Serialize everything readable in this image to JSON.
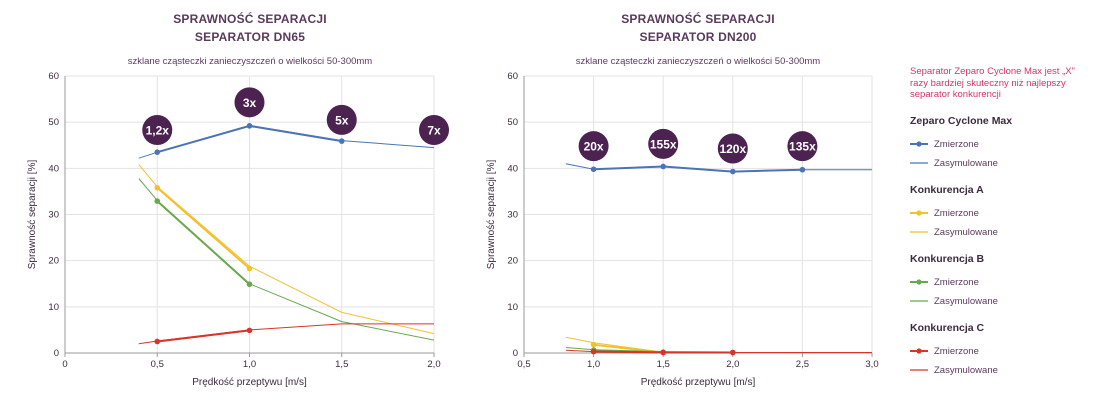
{
  "legend": {
    "note": "Separator Zeparo Cyclone Max jest „X” razy bardziej skuteczny niż najlepszy separator konkurencji",
    "groups": [
      {
        "name": "Zeparo Cyclone Max",
        "color": "#4a74b5",
        "measured": "Zmierzone",
        "simulated": "Zasymulowane"
      },
      {
        "name": "Konkurencja A",
        "color": "#f2c12e",
        "measured": "Zmierzone",
        "simulated": "Zasymulowane"
      },
      {
        "name": "Konkurencja B",
        "color": "#6aa84f",
        "measured": "Zmierzone",
        "simulated": "Zasymulowane"
      },
      {
        "name": "Konkurencja C",
        "color": "#d9342b",
        "measured": "Zmierzone",
        "simulated": "Zasymulowane"
      }
    ]
  },
  "chart_data": [
    {
      "type": "line",
      "title": "SPRAWNOŚĆ SEPARACJI",
      "title2": "SEPARATOR DN65",
      "subtitle": "szklane cząsteczki zanieczyszczeń o wielkości 50-300mm",
      "xlabel": "Prędkość przeptywu [m/s]",
      "ylabel": "Sprawność separacji [%]",
      "xlim": [
        0,
        2.0
      ],
      "ylim": [
        0,
        60
      ],
      "xticks": [
        "0",
        "0,5",
        "1,0",
        "1,5",
        "2,0"
      ],
      "xtick_values": [
        0,
        0.5,
        1.0,
        1.5,
        2.0
      ],
      "yticks": [
        "0",
        "10",
        "20",
        "30",
        "40",
        "50",
        "60"
      ],
      "ytick_values": [
        0,
        10,
        20,
        30,
        40,
        50,
        60
      ],
      "series": [
        {
          "name": "Zeparo Cyclone Max - Zmierzone",
          "color": "#4a74b5",
          "kind": "measured",
          "x": [
            0.5,
            1.0,
            1.5
          ],
          "y": [
            43.5,
            49.2,
            45.9
          ]
        },
        {
          "name": "Zeparo Cyclone Max - Zasymulowane",
          "color": "#4a74b5",
          "kind": "simulated",
          "x": [
            0.4,
            0.5,
            1.0,
            1.5,
            2.0
          ],
          "y": [
            42.2,
            43.5,
            49.3,
            46.0,
            44.5
          ]
        },
        {
          "name": "Konkurencja A - Zmierzone",
          "color": "#f2c12e",
          "kind": "measured",
          "x": [
            0.5,
            1.0
          ],
          "y": [
            35.8,
            18.3
          ]
        },
        {
          "name": "Konkurencja A - Zasymulowane",
          "color": "#f2c12e",
          "kind": "simulated",
          "x": [
            0.4,
            0.5,
            1.0,
            1.5,
            2.0
          ],
          "y": [
            40.8,
            36.0,
            18.8,
            8.8,
            4.2
          ]
        },
        {
          "name": "Konkurencja B - Zmierzone",
          "color": "#6aa84f",
          "kind": "measured",
          "x": [
            0.5,
            1.0
          ],
          "y": [
            32.9,
            14.9
          ]
        },
        {
          "name": "Konkurencja B - Zasymulowane",
          "color": "#6aa84f",
          "kind": "simulated",
          "x": [
            0.4,
            0.5,
            1.0,
            1.5,
            2.0
          ],
          "y": [
            37.8,
            33.0,
            15.0,
            6.8,
            2.8
          ]
        },
        {
          "name": "Konkurencja C - Zmierzone",
          "color": "#d9342b",
          "kind": "measured",
          "x": [
            0.5,
            1.0
          ],
          "y": [
            2.5,
            4.9
          ]
        },
        {
          "name": "Konkurencja C - Zasymulowane",
          "color": "#d9342b",
          "kind": "simulated",
          "x": [
            0.4,
            0.5,
            1.0,
            1.5,
            2.0
          ],
          "y": [
            2.0,
            2.6,
            5.0,
            6.3,
            6.3
          ]
        }
      ],
      "badges": [
        {
          "label": "1,2x",
          "x": 0.5,
          "y": 48.3
        },
        {
          "label": "3x",
          "x": 1.0,
          "y": 54.3
        },
        {
          "label": "5x",
          "x": 1.5,
          "y": 50.5
        },
        {
          "label": "7x",
          "x": 2.0,
          "y": 48.3
        }
      ]
    },
    {
      "type": "line",
      "title": "SPRAWNOŚĆ SEPARACJI",
      "title2": "SEPARATOR DN200",
      "subtitle": "szklane cząsteczki zanieczyszczeń o wielkości 50-300mm",
      "xlabel": "Prędkość przeptywu [m/s]",
      "ylabel": "Sprawność separacji [%]",
      "xlim": [
        0.5,
        3.0
      ],
      "ylim": [
        0,
        60
      ],
      "xticks": [
        "0,5",
        "1,0",
        "1,5",
        "2,0",
        "2,5",
        "3,0"
      ],
      "xtick_values": [
        0.5,
        1.0,
        1.5,
        2.0,
        2.5,
        3.0
      ],
      "yticks": [
        "0",
        "10",
        "20",
        "30",
        "40",
        "50",
        "60"
      ],
      "ytick_values": [
        0,
        10,
        20,
        30,
        40,
        50,
        60
      ],
      "series": [
        {
          "name": "Zeparo Cyclone Max - Zmierzone",
          "color": "#4a74b5",
          "kind": "measured",
          "x": [
            1.0,
            1.5,
            2.0,
            2.5
          ],
          "y": [
            39.8,
            40.4,
            39.3,
            39.7
          ]
        },
        {
          "name": "Zeparo Cyclone Max - Zasymulowane",
          "color": "#4a74b5",
          "kind": "simulated",
          "x": [
            0.8,
            1.0,
            1.5,
            2.0,
            2.5,
            3.0
          ],
          "y": [
            41.0,
            39.8,
            40.4,
            39.3,
            39.7,
            39.7
          ]
        },
        {
          "name": "Konkurencja A - Zmierzone",
          "color": "#f2c12e",
          "kind": "measured",
          "x": [
            1.0,
            1.5
          ],
          "y": [
            1.8,
            0.1
          ]
        },
        {
          "name": "Konkurencja A - Zasymulowane",
          "color": "#f2c12e",
          "kind": "simulated",
          "x": [
            0.8,
            1.0,
            1.5,
            2.0,
            3.0
          ],
          "y": [
            3.4,
            2.2,
            0.2,
            0.1,
            0.1
          ]
        },
        {
          "name": "Konkurencja B - Zmierzone",
          "color": "#6aa84f",
          "kind": "measured",
          "x": [
            1.0,
            1.5,
            2.0
          ],
          "y": [
            0.6,
            0.2,
            0.1
          ]
        },
        {
          "name": "Konkurencja B - Zasymulowane",
          "color": "#6aa84f",
          "kind": "simulated",
          "x": [
            0.8,
            1.0,
            1.5,
            2.0,
            3.0
          ],
          "y": [
            1.2,
            0.7,
            0.2,
            0.1,
            0.1
          ]
        },
        {
          "name": "Konkurencja C - Zmierzone",
          "color": "#d9342b",
          "kind": "measured",
          "x": [
            1.0,
            1.5,
            2.0
          ],
          "y": [
            0.3,
            0.1,
            0.1
          ]
        },
        {
          "name": "Konkurencja C - Zasymulowane",
          "color": "#d9342b",
          "kind": "simulated",
          "x": [
            0.8,
            1.0,
            1.5,
            2.0,
            3.0
          ],
          "y": [
            0.6,
            0.3,
            0.1,
            0.1,
            0.1
          ]
        }
      ],
      "badges": [
        {
          "label": "20x",
          "x": 1.0,
          "y": 44.8
        },
        {
          "label": "155x",
          "x": 1.5,
          "y": 45.3
        },
        {
          "label": "120x",
          "x": 2.0,
          "y": 44.3
        },
        {
          "label": "135x",
          "x": 2.5,
          "y": 44.8
        }
      ]
    }
  ]
}
